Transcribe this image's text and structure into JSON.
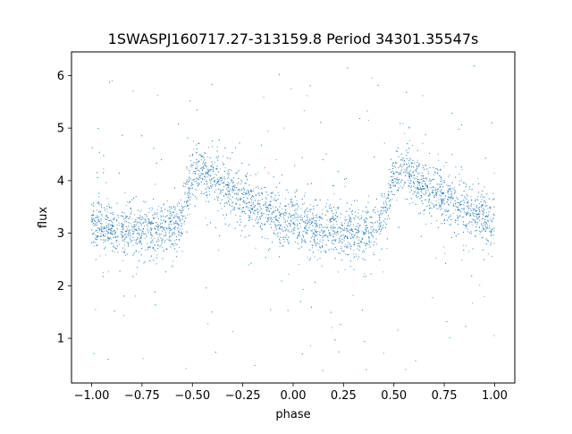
{
  "chart_data": {
    "type": "scatter",
    "title": "1SWASPJ160717.27-313159.8 Period 34301.35547s",
    "xlabel": "phase",
    "ylabel": "flux",
    "xlim": [
      -1.1,
      1.1
    ],
    "ylim": [
      0.15,
      6.45
    ],
    "x_ticks": [
      -1.0,
      -0.75,
      -0.5,
      -0.25,
      0.0,
      0.25,
      0.5,
      0.75,
      1.0
    ],
    "x_tick_labels": [
      "−1.00",
      "−0.75",
      "−0.50",
      "−0.25",
      "0.00",
      "0.25",
      "0.50",
      "0.75",
      "1.00"
    ],
    "y_ticks": [
      1,
      2,
      3,
      4,
      5,
      6
    ],
    "y_tick_labels": [
      "1",
      "2",
      "3",
      "4",
      "5",
      "6"
    ],
    "grid": false,
    "marker_color": "#1f77b4",
    "series": [
      {
        "phase_range": [
          -1.0,
          1.0
        ],
        "trend": {
          "phase": [
            0.0,
            0.1,
            0.2,
            0.3,
            0.4,
            0.45,
            0.5,
            0.55,
            0.6,
            0.7,
            0.8,
            0.9,
            1.0
          ],
          "flux": [
            3.15,
            3.1,
            3.05,
            3.05,
            3.1,
            3.3,
            4.1,
            4.2,
            4.05,
            3.8,
            3.55,
            3.35,
            3.2
          ]
        },
        "scatter_sigma": 0.22,
        "outlier_range": [
          0.3,
          6.2
        ]
      }
    ]
  }
}
